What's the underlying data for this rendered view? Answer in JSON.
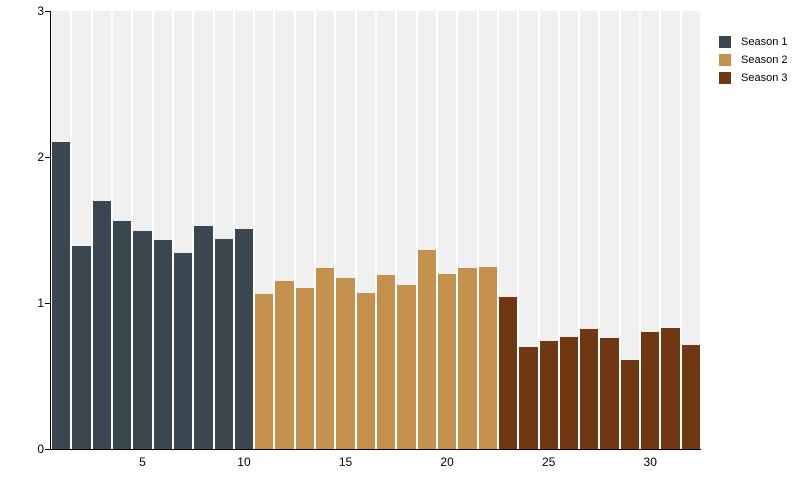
{
  "chart_data": {
    "type": "bar",
    "title": "",
    "xlabel": "",
    "ylabel": "",
    "ylim": [
      0,
      3
    ],
    "y_ticks": [
      0,
      1,
      2,
      3
    ],
    "x_ticks": [
      5,
      10,
      15,
      20,
      25,
      30
    ],
    "x_range": [
      1,
      32
    ],
    "bar_count": 32,
    "grid": "vertical-band-columns",
    "legend_position": "top-right",
    "series": [
      {
        "name": "Season 1",
        "color": "#3a4750",
        "x_start": 1,
        "values": [
          2.1,
          1.39,
          1.7,
          1.56,
          1.49,
          1.43,
          1.34,
          1.53,
          1.44,
          1.51
        ]
      },
      {
        "name": "Season 2",
        "color": "#c3914d",
        "x_start": 11,
        "values": [
          1.06,
          1.15,
          1.1,
          1.24,
          1.17,
          1.07,
          1.19,
          1.12,
          1.36,
          1.2,
          1.24,
          1.25
        ]
      },
      {
        "name": "Season 3",
        "color": "#6f3712",
        "x_start": 23,
        "values": [
          1.04,
          0.7,
          0.74,
          0.77,
          0.82,
          0.76,
          0.61,
          0.8,
          0.83,
          0.71
        ]
      }
    ],
    "colors": {
      "plot_band": "#f0f0f1",
      "axis": "#000000",
      "background": "#ffffff"
    }
  }
}
